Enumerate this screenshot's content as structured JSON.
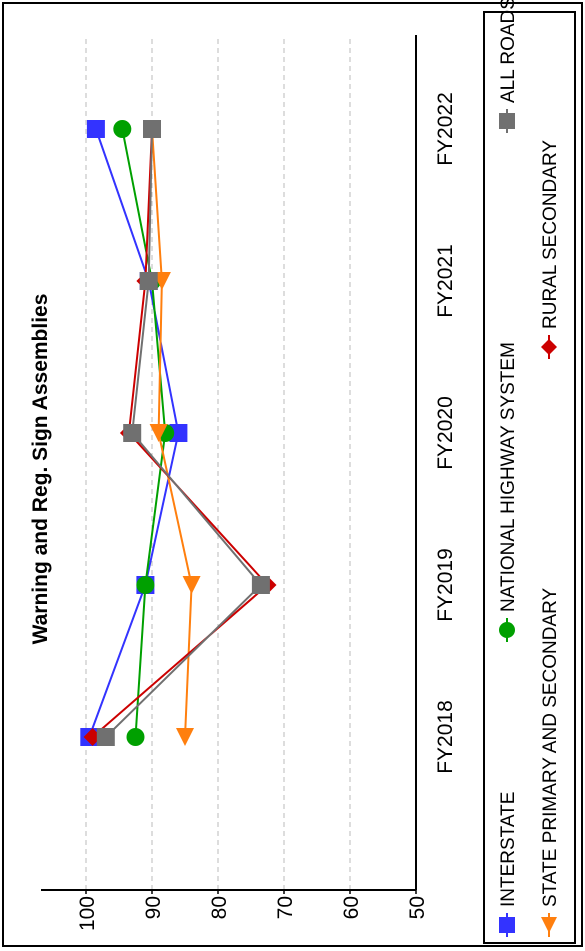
{
  "chart_data": {
    "type": "line",
    "title": "Warning and Reg. Sign Assemblies",
    "xlabel": "",
    "ylabel": "",
    "categories": [
      "FY2018",
      "FY2019",
      "FY2020",
      "FY2021",
      "FY2022"
    ],
    "yticks": [
      "100",
      "90",
      "80",
      "70",
      "60",
      "50"
    ],
    "ylim": [
      50,
      105
    ],
    "grid": "horizontal dashed",
    "legend_position": "bottom",
    "orientation": "rotated 90 degrees counter-clockwise",
    "series": [
      {
        "name": "INTERSTATE",
        "color": "#3333ff",
        "marker": "square",
        "values": [
          99.5,
          91,
          86,
          90.5,
          98.5
        ]
      },
      {
        "name": "NATIONAL HIGHWAY SYSTEM",
        "color": "#00a000",
        "marker": "circle",
        "values": [
          92.5,
          91,
          88,
          90,
          94.5
        ]
      },
      {
        "name": "STATE PRIMARY AND SECONDARY",
        "color": "#ff7f0e",
        "marker": "triangle",
        "values": [
          85,
          84,
          89,
          88.5,
          90
        ]
      },
      {
        "name": "RURAL SECONDARY",
        "color": "#cc0000",
        "marker": "diamond",
        "values": [
          99,
          72.5,
          93.5,
          91,
          90
        ]
      },
      {
        "name": "ALL ROADS",
        "color": "#707070",
        "marker": "square",
        "values": [
          97,
          73.5,
          93,
          90.5,
          90
        ]
      }
    ]
  }
}
